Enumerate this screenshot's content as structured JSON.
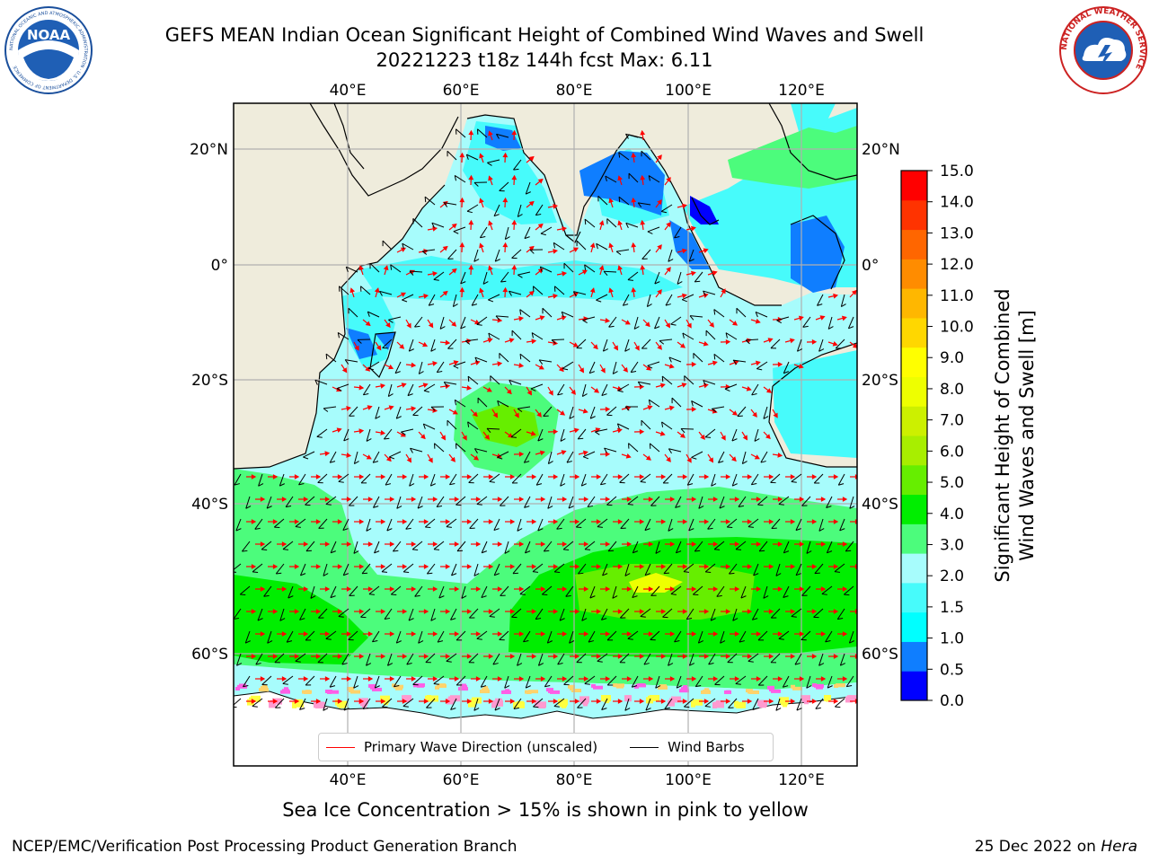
{
  "title": {
    "line1": "GEFS MEAN Indian Ocean Significant Height of Combined Wind Waves and Swell",
    "line2": "20221223 t18z 144h fcst   Max: 6.11"
  },
  "logos": {
    "noaa_text": "NOAA",
    "noaa_ring_text": "NATIONAL OCEANIC AND ATMOSPHERIC ADMINISTRATION · U.S. DEPARTMENT OF COMMERCE",
    "nws_ring_text": "NATIONAL WEATHER SERVICE"
  },
  "map": {
    "lon_ticks": [
      "40°E",
      "60°E",
      "80°E",
      "100°E",
      "120°E"
    ],
    "lat_ticks": [
      "20°N",
      "0°",
      "20°S",
      "40°S",
      "60°S"
    ],
    "land_color": "#efecdc",
    "ice_colors": [
      "#ff5fe6",
      "#ff9ad0",
      "#ffd36b",
      "#ffff40"
    ]
  },
  "colorbar": {
    "label": "Significant Height of Combined Wind Waves and Swell [m]",
    "tick_labels": [
      "0.0",
      "0.5",
      "1.0",
      "1.5",
      "2.0",
      "3.0",
      "4.0",
      "5.0",
      "6.0",
      "7.0",
      "8.0",
      "9.0",
      "10.0",
      "11.0",
      "12.0",
      "13.0",
      "14.0",
      "15.0"
    ],
    "colors": [
      "#0000ff",
      "#0f7eff",
      "#00ffff",
      "#47fbfb",
      "#a7fcfc",
      "#4cfc7c",
      "#00ee00",
      "#66ee00",
      "#a8ee00",
      "#ccf000",
      "#eeff00",
      "#ffff00",
      "#ffd700",
      "#ffb700",
      "#ff8c00",
      "#ff6600",
      "#ff3300",
      "#ff0000"
    ]
  },
  "legend": {
    "wave_label": "Primary Wave Direction (unscaled)",
    "wind_label": "Wind Barbs",
    "wave_color": "#ff0000",
    "wind_color": "#000000"
  },
  "footer": {
    "note": "Sea Ice Concentration > 15% is shown in pink to yellow",
    "credit": "NCEP/EMC/Verification Post Processing Product Generation Branch",
    "date": "25 Dec 2022 on",
    "host": "Hera"
  }
}
